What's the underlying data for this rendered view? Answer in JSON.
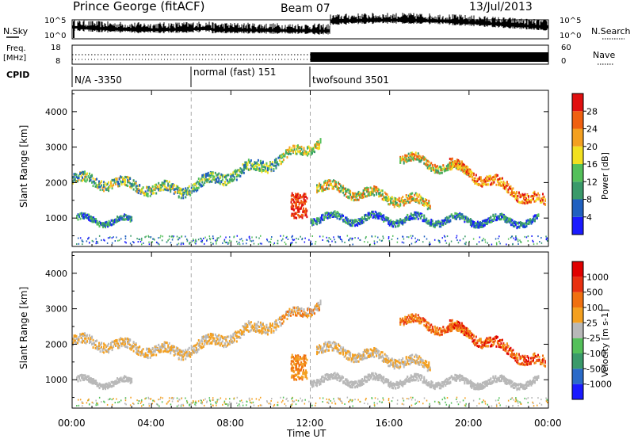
{
  "header": {
    "station": "Prince George (fitACF)",
    "beam": "Beam 07",
    "date": "13/Jul/2013"
  },
  "side_labels": {
    "nsky": "N.Sky",
    "freq_line1": "Freq.",
    "freq_line2": "[MHz]",
    "cpid": "CPID",
    "nsearch": "N.Search",
    "nave": "Nave"
  },
  "top_panel": {
    "left_ticks": [
      "10^5",
      "10^0"
    ],
    "right_ticks": [
      "10^5",
      "10^0"
    ]
  },
  "freq_panel": {
    "left_ticks": [
      "18",
      "8"
    ],
    "right_ticks": [
      "60",
      "0"
    ]
  },
  "cpid_segments": [
    {
      "label": "N/A -3350",
      "start_hour": 0
    },
    {
      "label": "normal (fast) 151",
      "start_hour": 6
    },
    {
      "label": "twofsound 3501",
      "start_hour": 12
    }
  ],
  "power_colorbar": {
    "title": "Power [dB]",
    "ticks": [
      "28",
      "24",
      "20",
      "16",
      "12",
      "8",
      "4"
    ],
    "colors": [
      "#1a1aff",
      "#2060c0",
      "#3a9a6a",
      "#54c05a",
      "#f2e020",
      "#f4a020",
      "#f06010",
      "#e01010"
    ]
  },
  "velocity_colorbar": {
    "title": "Velocity [m s-1]",
    "ticks": [
      "1000",
      "500",
      "100",
      "25",
      "-25",
      "-100",
      "-500",
      "-1000"
    ],
    "colors": [
      "#1a1aff",
      "#2a6ac8",
      "#3a9a6a",
      "#54c05a",
      "#b8b8b8",
      "#f4a020",
      "#f07010",
      "#e83010",
      "#e00000"
    ]
  },
  "chart_data": {
    "type": "heatmap",
    "xlabel": "Time UT",
    "x_ticks": [
      "00:00",
      "04:00",
      "08:00",
      "12:00",
      "16:00",
      "20:00",
      "00:00"
    ],
    "xlim_hours": [
      0,
      24
    ],
    "cpid_change_hours": [
      6,
      12
    ],
    "panels": [
      {
        "name": "Power [dB]",
        "ylabel": "Slant Range [km]",
        "y_ticks": [
          "1000",
          "2000",
          "3000",
          "4000"
        ],
        "ylim": [
          200,
          4600
        ]
      },
      {
        "name": "Velocity [m s-1]",
        "ylabel": "Slant Range [km]",
        "y_ticks": [
          "1000",
          "2000",
          "3000",
          "4000"
        ],
        "ylim": [
          200,
          4600
        ]
      }
    ]
  }
}
